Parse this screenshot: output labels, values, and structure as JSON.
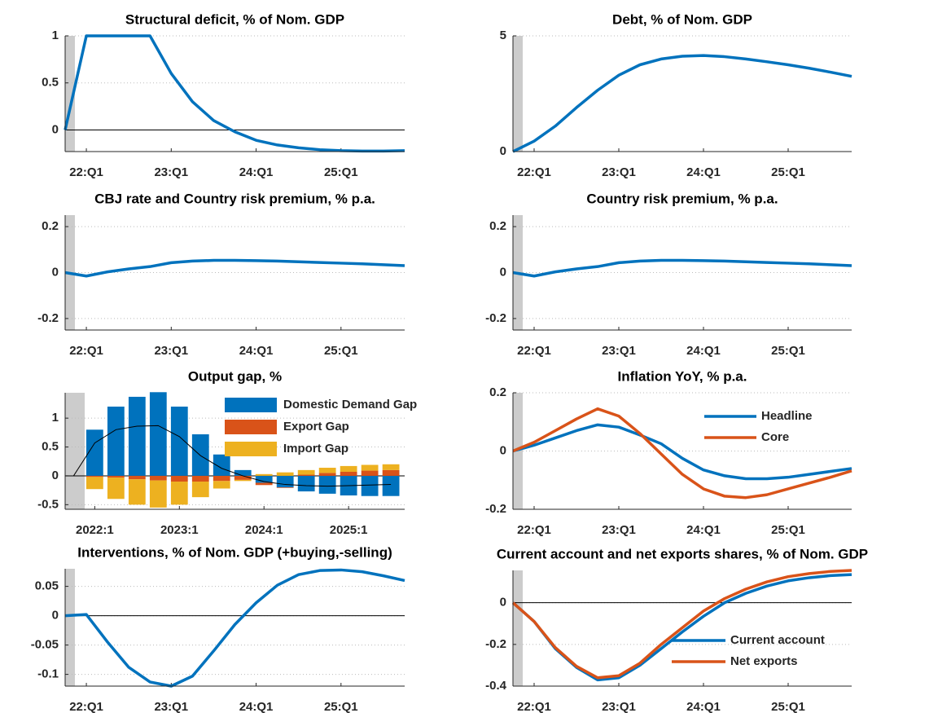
{
  "chart_data": [
    {
      "type": "line",
      "title": "Structural deficit, % of Nom. GDP",
      "categories": [
        null,
        "22:Q1",
        null,
        null,
        null,
        "23:Q1",
        null,
        null,
        null,
        "24:Q1",
        null,
        null,
        null,
        "25:Q1",
        null,
        null,
        null
      ],
      "values": [
        0,
        1,
        1,
        1,
        1,
        0.6,
        0.3,
        0.1,
        -0.02,
        -0.11,
        -0.16,
        -0.19,
        -0.21,
        -0.22,
        -0.225,
        -0.225,
        -0.22
      ],
      "color": "#0072bd",
      "ylim": [
        -0.23,
        1
      ],
      "yticks": [
        0,
        0.5,
        1
      ],
      "grid": true,
      "zero_line": true
    },
    {
      "type": "line",
      "title": "Debt, % of Nom. GDP",
      "categories": [
        null,
        "22:Q1",
        null,
        null,
        null,
        "23:Q1",
        null,
        null,
        null,
        "24:Q1",
        null,
        null,
        null,
        "25:Q1",
        null,
        null,
        null
      ],
      "values": [
        0,
        0.45,
        1.1,
        1.9,
        2.65,
        3.3,
        3.75,
        4.0,
        4.12,
        4.15,
        4.1,
        4.0,
        3.88,
        3.75,
        3.6,
        3.43,
        3.25
      ],
      "color": "#0072bd",
      "ylim": [
        0,
        5
      ],
      "yticks": [
        0,
        5
      ],
      "grid": true,
      "zero_line": false
    },
    {
      "type": "line",
      "title": "CBJ rate and Country risk premium, % p.a.",
      "categories": [
        null,
        "22:Q1",
        null,
        null,
        null,
        "23:Q1",
        null,
        null,
        null,
        "24:Q1",
        null,
        null,
        null,
        "25:Q1",
        null,
        null,
        null
      ],
      "values": [
        0,
        -0.015,
        0.003,
        0.016,
        0.026,
        0.043,
        0.05,
        0.053,
        0.053,
        0.052,
        0.05,
        0.047,
        0.044,
        0.041,
        0.038,
        0.034,
        0.03
      ],
      "color": "#0072bd",
      "ylim": [
        -0.25,
        0.25
      ],
      "yticks": [
        -0.2,
        0,
        0.2
      ],
      "grid": true,
      "zero_line": false
    },
    {
      "type": "line",
      "title": "Country risk premium, % p.a.",
      "categories": [
        null,
        "22:Q1",
        null,
        null,
        null,
        "23:Q1",
        null,
        null,
        null,
        "24:Q1",
        null,
        null,
        null,
        "25:Q1",
        null,
        null,
        null
      ],
      "values": [
        0,
        -0.015,
        0.003,
        0.016,
        0.026,
        0.043,
        0.05,
        0.053,
        0.053,
        0.052,
        0.05,
        0.047,
        0.044,
        0.041,
        0.038,
        0.034,
        0.03
      ],
      "color": "#0072bd",
      "ylim": [
        -0.25,
        0.25
      ],
      "yticks": [
        -0.2,
        0,
        0.2
      ],
      "grid": true,
      "zero_line": false
    },
    {
      "type": "bar",
      "title": "Output gap, %",
      "categories": [
        null,
        "2022:1",
        null,
        null,
        null,
        "2023:1",
        null,
        null,
        null,
        "2024:1",
        null,
        null,
        null,
        "2025:1",
        null,
        null
      ],
      "series": [
        {
          "name": "Domestic Demand Gap",
          "color": "#0072bd",
          "values": [
            0,
            0.8,
            1.2,
            1.37,
            1.45,
            1.2,
            0.72,
            0.37,
            0.1,
            -0.12,
            -0.2,
            -0.27,
            -0.31,
            -0.34,
            -0.35,
            -0.35
          ]
        },
        {
          "name": "Export Gap",
          "color": "#d95319",
          "values": [
            0,
            -0.02,
            -0.03,
            -0.06,
            -0.08,
            -0.1,
            -0.1,
            -0.09,
            -0.07,
            -0.04,
            -0.01,
            0.02,
            0.05,
            0.07,
            0.09,
            0.1
          ]
        },
        {
          "name": "Import Gap",
          "color": "#edb120",
          "values": [
            0,
            -0.21,
            -0.37,
            -0.44,
            -0.47,
            -0.4,
            -0.27,
            -0.13,
            -0.02,
            0.03,
            0.06,
            0.08,
            0.09,
            0.1,
            0.1,
            0.1
          ]
        }
      ],
      "line": {
        "color": "#000000",
        "values": [
          0,
          0.57,
          0.8,
          0.86,
          0.87,
          0.68,
          0.35,
          0.13,
          0,
          -0.1,
          -0.15,
          -0.17,
          -0.18,
          -0.17,
          -0.16,
          -0.15
        ]
      },
      "ylim": [
        -0.58,
        1.44
      ],
      "yticks": [
        -0.5,
        0,
        0.5,
        1
      ],
      "grid": true,
      "zero_line": true,
      "legend": "upper right"
    },
    {
      "type": "line",
      "title": "Inflation YoY, % p.a.",
      "categories": [
        null,
        "22:Q1",
        null,
        null,
        null,
        "23:Q1",
        null,
        null,
        null,
        "24:Q1",
        null,
        null,
        null,
        "25:Q1",
        null,
        null,
        null
      ],
      "series": [
        {
          "name": "Headline",
          "color": "#0072bd",
          "values": [
            0,
            0.02,
            0.045,
            0.07,
            0.09,
            0.082,
            0.055,
            0.025,
            -0.025,
            -0.065,
            -0.085,
            -0.095,
            -0.095,
            -0.09,
            -0.08,
            -0.07,
            -0.06
          ]
        },
        {
          "name": "Core",
          "color": "#d95319",
          "values": [
            0,
            0.03,
            0.07,
            0.11,
            0.145,
            0.12,
            0.06,
            -0.01,
            -0.08,
            -0.13,
            -0.155,
            -0.16,
            -0.15,
            -0.13,
            -0.11,
            -0.09,
            -0.068
          ]
        }
      ],
      "ylim": [
        -0.2,
        0.2
      ],
      "yticks": [
        -0.2,
        0,
        0.2
      ],
      "grid": true,
      "zero_line": false,
      "legend": "upper right"
    },
    {
      "type": "line",
      "title": "Interventions, % of Nom. GDP (+buying,-selling)",
      "categories": [
        null,
        "22:Q1",
        null,
        null,
        null,
        "23:Q1",
        null,
        null,
        null,
        "24:Q1",
        null,
        null,
        null,
        "25:Q1",
        null,
        null,
        null
      ],
      "values": [
        0,
        0.002,
        -0.045,
        -0.088,
        -0.113,
        -0.12,
        -0.103,
        -0.06,
        -0.015,
        0.022,
        0.052,
        0.07,
        0.077,
        0.078,
        0.075,
        0.068,
        0.06
      ],
      "color": "#0072bd",
      "ylim": [
        -0.12,
        0.08
      ],
      "yticks": [
        -0.1,
        -0.05,
        0,
        0.05
      ],
      "grid": true,
      "zero_line": true
    },
    {
      "type": "line",
      "title": "Current account and net exports shares, % of Nom. GDP",
      "categories": [
        null,
        "22:Q1",
        null,
        null,
        null,
        "23:Q1",
        null,
        null,
        null,
        "24:Q1",
        null,
        null,
        null,
        "25:Q1",
        null,
        null,
        null
      ],
      "series": [
        {
          "name": "Current account",
          "color": "#0072bd",
          "values": [
            0,
            -0.09,
            -0.22,
            -0.31,
            -0.37,
            -0.36,
            -0.3,
            -0.22,
            -0.14,
            -0.065,
            0,
            0.045,
            0.08,
            0.105,
            0.12,
            0.13,
            0.135
          ]
        },
        {
          "name": "Net exports",
          "color": "#d95319",
          "values": [
            0,
            -0.09,
            -0.215,
            -0.305,
            -0.36,
            -0.35,
            -0.29,
            -0.2,
            -0.12,
            -0.04,
            0.02,
            0.065,
            0.1,
            0.125,
            0.14,
            0.15,
            0.155
          ]
        }
      ],
      "ylim": [
        -0.4,
        0.155
      ],
      "yticks": [
        -0.4,
        -0.2,
        0
      ],
      "grid": true,
      "zero_line": true,
      "legend": "lower right"
    }
  ]
}
